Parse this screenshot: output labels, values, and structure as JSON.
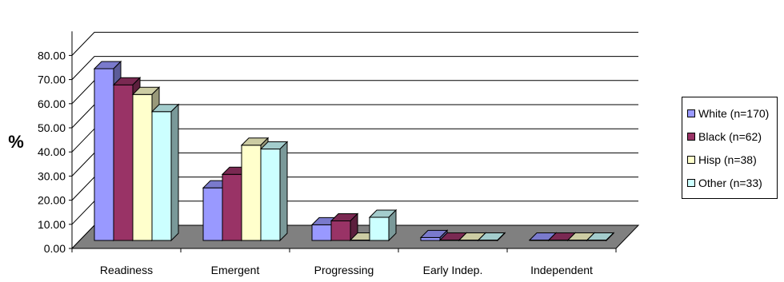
{
  "chart_data": {
    "type": "bar",
    "title": "",
    "xlabel": "",
    "ylabel": "%",
    "ylim": [
      0,
      90
    ],
    "yticks": [
      0,
      10,
      20,
      30,
      40,
      50,
      60,
      70,
      80
    ],
    "ytick_labels": [
      "0.00",
      "10.00",
      "20.00",
      "30.00",
      "40.00",
      "50.00",
      "60.00",
      "70.00",
      "80.00"
    ],
    "grid": true,
    "style": "3d-column",
    "legend_position": "right",
    "categories": [
      "Readiness",
      "Emergent",
      "Progressing",
      "Early Indep.",
      "Independent"
    ],
    "series": [
      {
        "name": "White (n=170)",
        "color": "#9999ff",
        "values": [
          71.2,
          21.8,
          6.5,
          1.2,
          0.0
        ]
      },
      {
        "name": "Black (n=62)",
        "color": "#993366",
        "values": [
          64.5,
          27.4,
          8.1,
          0.0,
          0.0
        ]
      },
      {
        "name": "Hisp  (n=38)",
        "color": "#ffffcc",
        "values": [
          60.5,
          39.5,
          0.0,
          0.0,
          0.0
        ]
      },
      {
        "name": "Other  (n=33)",
        "color": "#ccffff",
        "values": [
          53.4,
          37.9,
          9.6,
          0.0,
          0.0
        ]
      }
    ],
    "colors": {
      "floor": "#808080",
      "walls": "#ffffff",
      "axis": "#000000"
    }
  }
}
